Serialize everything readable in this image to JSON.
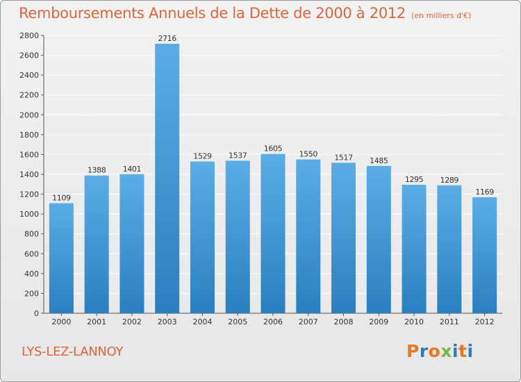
{
  "title": "Remboursements Annuels de la Dette de 2000 à 2012",
  "subtitle": "(en milliers d'€)",
  "town": "LYS-LEZ-LANNOY",
  "logo": {
    "letters": [
      "P",
      "r",
      "o",
      "x",
      "i",
      "t",
      "i"
    ],
    "colors": [
      "#e87722",
      "#2b7bbd",
      "#e87722",
      "#7ab648",
      "#2b7bbd",
      "#e87722",
      "#2b7bbd"
    ]
  },
  "colors": {
    "title": "#e0653a",
    "bar_light": "#5aaee5",
    "bar_dark": "#2a7fc0",
    "grid": "#ffffff"
  },
  "chart_data": {
    "type": "bar",
    "categories": [
      "2000",
      "2001",
      "2002",
      "2003",
      "2004",
      "2005",
      "2006",
      "2007",
      "2008",
      "2009",
      "2010",
      "2011",
      "2012"
    ],
    "values": [
      1109,
      1388,
      1401,
      2716,
      1529,
      1537,
      1605,
      1550,
      1517,
      1485,
      1295,
      1289,
      1169
    ],
    "ylim": [
      0,
      2800
    ],
    "yticks": [
      0,
      200,
      400,
      600,
      800,
      1000,
      1200,
      1400,
      1600,
      1800,
      2000,
      2200,
      2400,
      2600,
      2800
    ],
    "grid": true,
    "data_labels": true
  }
}
